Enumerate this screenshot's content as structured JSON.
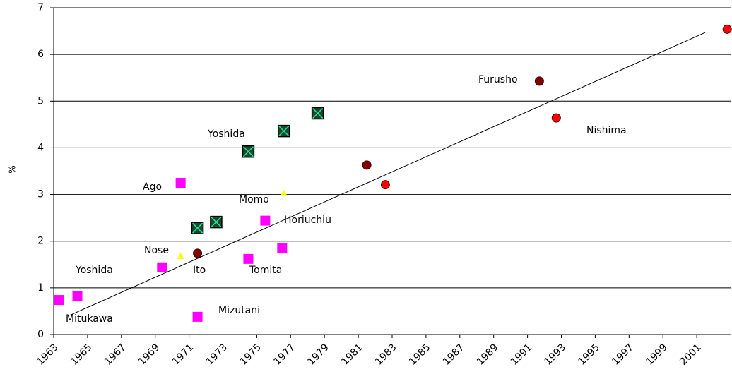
{
  "chart_data": {
    "type": "scatter",
    "y_label": "%",
    "xlim": [
      1963,
      2003
    ],
    "ylim": [
      0,
      7
    ],
    "xticks": [
      1963,
      1965,
      1967,
      1969,
      1971,
      1973,
      1975,
      1977,
      1979,
      1981,
      1983,
      1985,
      1987,
      1989,
      1991,
      1993,
      1995,
      1997,
      1999,
      2001
    ],
    "yticks": [
      0,
      1,
      2,
      3,
      4,
      5,
      6,
      7
    ],
    "grid": true,
    "series": [
      {
        "marker": "square",
        "color": "#ff00ff",
        "x": [
          1963.3,
          1964.4,
          1969.4,
          1970.5,
          1971.5,
          1974.5,
          1975.5,
          1976.5
        ],
        "values": [
          0.74,
          0.82,
          1.44,
          3.25,
          0.38,
          1.62,
          2.44,
          1.86
        ]
      },
      {
        "marker": "triangle",
        "color": "#ffff00",
        "x": [
          1970.5,
          1976.6
        ],
        "values": [
          1.68,
          3.03
        ]
      },
      {
        "marker": "crossed-square",
        "color": "#1f4a1f",
        "x": [
          1971.5,
          1972.6,
          1974.5,
          1976.6,
          1978.6
        ],
        "values": [
          2.28,
          2.41,
          3.92,
          4.36,
          4.74
        ]
      },
      {
        "marker": "circle",
        "color": "#800000",
        "x": [
          1971.5,
          1981.5,
          1991.7
        ],
        "values": [
          1.74,
          3.63,
          5.43
        ]
      },
      {
        "marker": "circle",
        "color": "#ff0000",
        "x": [
          1982.6,
          1992.7,
          2002.8
        ],
        "values": [
          3.21,
          4.64,
          6.54
        ]
      }
    ],
    "trendline": {
      "color": "#000000",
      "x": [
        1964,
        2001.5
      ],
      "values": [
        0.42,
        6.47
      ]
    },
    "annotations": [
      "Mitukawa",
      "Yoshida",
      "Ago",
      "Nose",
      "Ito",
      "Mizutani",
      "Tomita",
      "Momo",
      "Horiuchiu",
      "Yoshida",
      "Furusho",
      "Nishima"
    ]
  }
}
